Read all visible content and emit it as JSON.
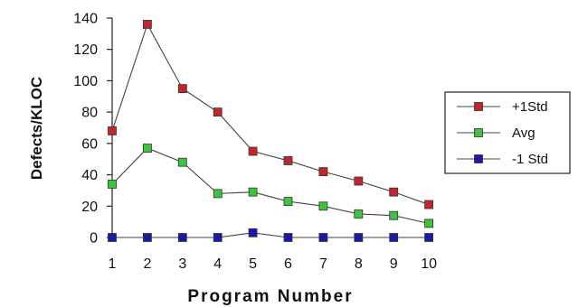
{
  "chart_data": {
    "type": "line",
    "xlabel": "Program Number",
    "ylabel": "Defects/KLOC",
    "x": [
      1,
      2,
      3,
      4,
      5,
      6,
      7,
      8,
      9,
      10
    ],
    "xticks": [
      "1",
      "2",
      "3",
      "4",
      "5",
      "6",
      "7",
      "8",
      "9",
      "10"
    ],
    "yticks": [
      "0",
      "20",
      "40",
      "60",
      "80",
      "100",
      "120",
      "140"
    ],
    "ylim": [
      0,
      140
    ],
    "grid": false,
    "legend_position": "right",
    "series": [
      {
        "name": "+1Std",
        "color": "#c0262a",
        "values": [
          68,
          136,
          95,
          80,
          55,
          49,
          42,
          36,
          29,
          21
        ]
      },
      {
        "name": "Avg",
        "color": "#3cc43c",
        "values": [
          34,
          57,
          48,
          28,
          29,
          23,
          20,
          15,
          14,
          9
        ]
      },
      {
        "name": "-1 Std",
        "color": "#1a1aa8",
        "values": [
          0,
          0,
          0,
          0,
          3,
          0,
          0,
          0,
          0,
          0
        ]
      }
    ]
  }
}
